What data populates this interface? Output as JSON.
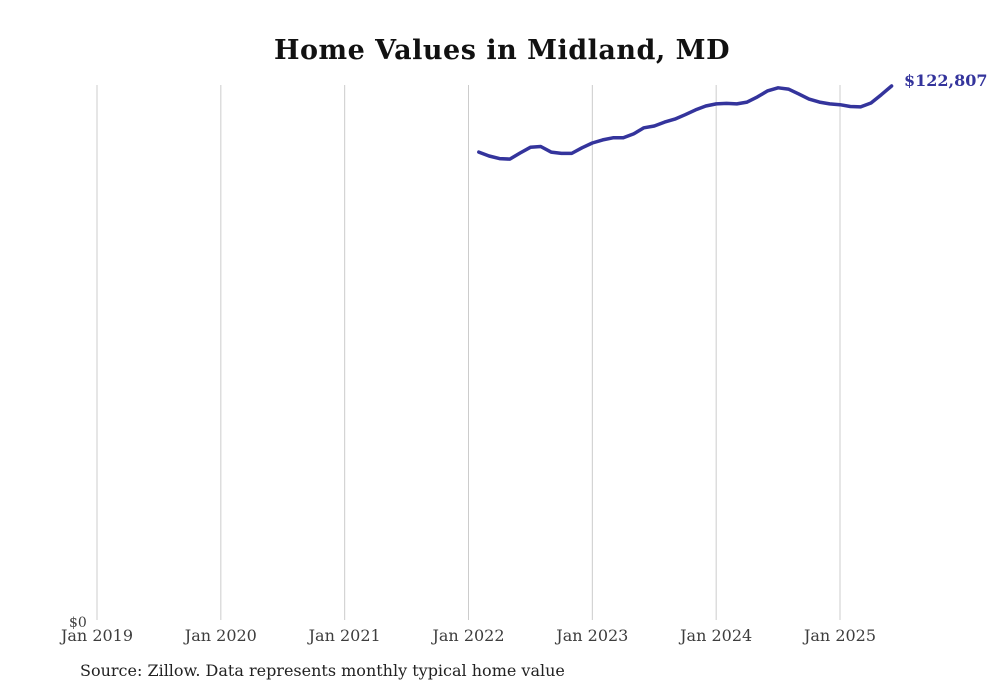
{
  "title": "Home Values in Midland, MD",
  "source_note": "Source: Zillow. Data represents monthly typical home value",
  "end_label": "$122,807",
  "y_axis": {
    "zero_label": "$0"
  },
  "colors": {
    "line": "#34349C",
    "end_label": "#34349C",
    "gridline": "#cccccc",
    "title": "#111111",
    "tick_label": "#3d3d3d",
    "source": "#222222"
  },
  "chart_data": {
    "type": "line",
    "title": "Home Values in Midland, MD",
    "xlabel": "",
    "ylabel": "",
    "ylim": [
      0,
      123000
    ],
    "grid": "vertical-only",
    "legend": "none",
    "series_name": "Typical home value",
    "x_ticks": [
      {
        "label": "Jan 2019",
        "month": "2019-01"
      },
      {
        "label": "Jan 2020",
        "month": "2020-01"
      },
      {
        "label": "Jan 2021",
        "month": "2021-01"
      },
      {
        "label": "Jan 2022",
        "month": "2022-01"
      },
      {
        "label": "Jan 2023",
        "month": "2023-01"
      },
      {
        "label": "Jan 2024",
        "month": "2024-01"
      },
      {
        "label": "Jan 2025",
        "month": "2025-01"
      }
    ],
    "categories": [
      "2022-02",
      "2022-03",
      "2022-04",
      "2022-05",
      "2022-06",
      "2022-07",
      "2022-08",
      "2022-09",
      "2022-10",
      "2022-11",
      "2022-12",
      "2023-01",
      "2023-02",
      "2023-03",
      "2023-04",
      "2023-05",
      "2023-06",
      "2023-07",
      "2023-08",
      "2023-09",
      "2023-10",
      "2023-11",
      "2023-12",
      "2024-01",
      "2024-02",
      "2024-03",
      "2024-04",
      "2024-05",
      "2024-06",
      "2024-07",
      "2024-08",
      "2024-09",
      "2024-10",
      "2024-11",
      "2024-12",
      "2025-01",
      "2025-02",
      "2025-03",
      "2025-04",
      "2025-05",
      "2025-06"
    ],
    "values": [
      107600,
      106700,
      106100,
      106000,
      107400,
      108700,
      108900,
      107600,
      107300,
      107300,
      108600,
      109700,
      110400,
      110900,
      110900,
      111800,
      113200,
      113600,
      114500,
      115200,
      116200,
      117300,
      118200,
      118700,
      118800,
      118700,
      119100,
      120300,
      121700,
      122400,
      122100,
      121000,
      119800,
      119100,
      118700,
      118500,
      118100,
      118000,
      118900,
      120800,
      122807
    ],
    "end_point_label": "$122,807"
  }
}
